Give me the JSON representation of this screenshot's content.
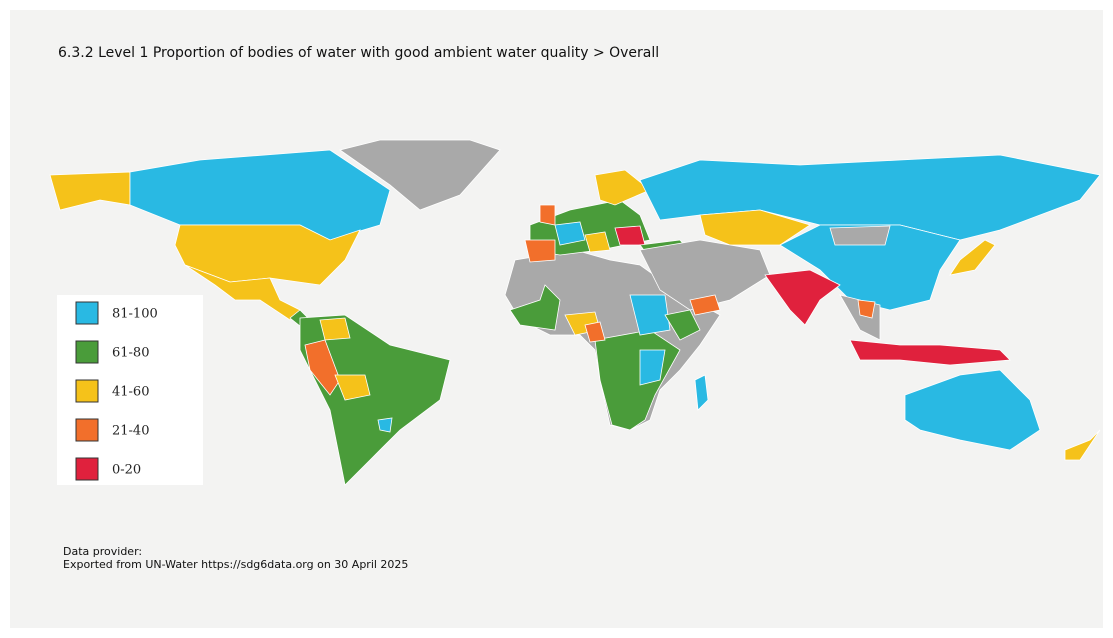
{
  "header": {
    "title": "6.3.2 Level 1 Proportion of bodies of water with good ambient water quality > Overall"
  },
  "legend": {
    "items": [
      {
        "label": "81-100",
        "color": "#29b9e3"
      },
      {
        "label": "61-80",
        "color": "#4a9c3a"
      },
      {
        "label": "41-60",
        "color": "#f5c21a"
      },
      {
        "label": "21-40",
        "color": "#f26f2b"
      },
      {
        "label": "0-20",
        "color": "#e0213d"
      }
    ]
  },
  "footer": {
    "provider": "Data provider:",
    "export": "Exported from UN-Water https://sdg6data.org on 30 April 2025"
  }
}
